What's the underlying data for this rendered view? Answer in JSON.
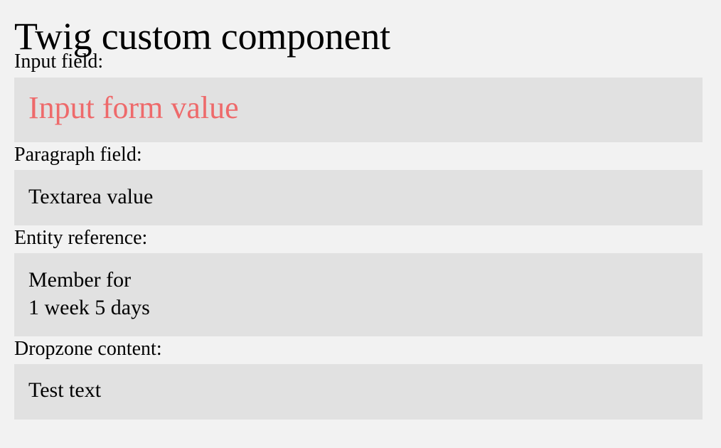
{
  "page": {
    "title": "Twig custom component"
  },
  "fields": {
    "input": {
      "label": "Input field:",
      "value": "Input form value",
      "value_color": "#ee6a6b"
    },
    "paragraph": {
      "label": "Paragraph field:",
      "value": "Textarea value"
    },
    "entity": {
      "label": "Entity reference:",
      "line1": "Member for",
      "line2": "1 week 5 days"
    },
    "dropzone": {
      "label": "Dropzone content:",
      "value": "Test text"
    }
  },
  "colors": {
    "background": "#f2f2f2",
    "box_background": "#e1e1e1"
  }
}
